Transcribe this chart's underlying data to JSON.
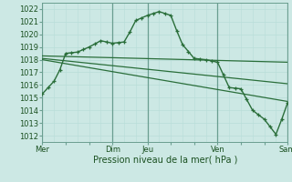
{
  "background_color": "#cce8e4",
  "grid_color_minor": "#b8ddd8",
  "grid_color_major": "#88bbb0",
  "line_color_main": "#2a6e3a",
  "line_color_trend": "#2a6e3a",
  "xlabel": "Pression niveau de la mer( hPa )",
  "ylim": [
    1011.5,
    1022.5
  ],
  "yticks": [
    1012,
    1013,
    1014,
    1015,
    1016,
    1017,
    1018,
    1019,
    1020,
    1021,
    1022
  ],
  "xlim": [
    0,
    21
  ],
  "xtick_labels": [
    "Mer",
    "",
    "",
    "Dim",
    "Jeu",
    "",
    "",
    "Ven",
    "",
    "",
    "Sam"
  ],
  "xtick_positions": [
    0,
    2,
    4,
    6,
    9,
    11,
    13,
    15,
    17,
    19,
    21
  ],
  "day_vlines": [
    0,
    6,
    9,
    15,
    21
  ],
  "series1_x": [
    0,
    0.5,
    1,
    1.5,
    2,
    2.5,
    3,
    3.5,
    4,
    4.5,
    5,
    5.5,
    6,
    6.5,
    7,
    7.5,
    8,
    8.5,
    9,
    9.5,
    10,
    10.5,
    11,
    11.5,
    12,
    12.5,
    13,
    13.5,
    14,
    14.5,
    15,
    15.5,
    16,
    16.5,
    17,
    17.5,
    18,
    18.5,
    19,
    19.5,
    20,
    20.5,
    21
  ],
  "series1_y": [
    1015.3,
    1015.8,
    1016.3,
    1017.2,
    1018.5,
    1018.55,
    1018.6,
    1018.8,
    1019.0,
    1019.25,
    1019.5,
    1019.4,
    1019.3,
    1019.35,
    1019.4,
    1020.2,
    1021.1,
    1021.3,
    1021.5,
    1021.65,
    1021.8,
    1021.65,
    1021.5,
    1020.3,
    1019.2,
    1018.65,
    1018.1,
    1018.05,
    1018.0,
    1017.9,
    1017.8,
    1016.8,
    1015.8,
    1015.75,
    1015.7,
    1014.85,
    1014.0,
    1013.65,
    1013.3,
    1012.7,
    1012.1,
    1013.3,
    1014.6
  ],
  "series2_x": [
    0,
    21
  ],
  "series2_y": [
    1018.3,
    1017.8
  ],
  "series3_x": [
    0,
    21
  ],
  "series3_y": [
    1018.1,
    1016.1
  ],
  "series4_x": [
    0,
    21
  ],
  "series4_y": [
    1018.0,
    1014.7
  ],
  "marker_size": 3.5,
  "linewidth_main": 1.0,
  "linewidth_trend": 0.9,
  "tick_fontsize": 6.0,
  "xlabel_fontsize": 7.0
}
